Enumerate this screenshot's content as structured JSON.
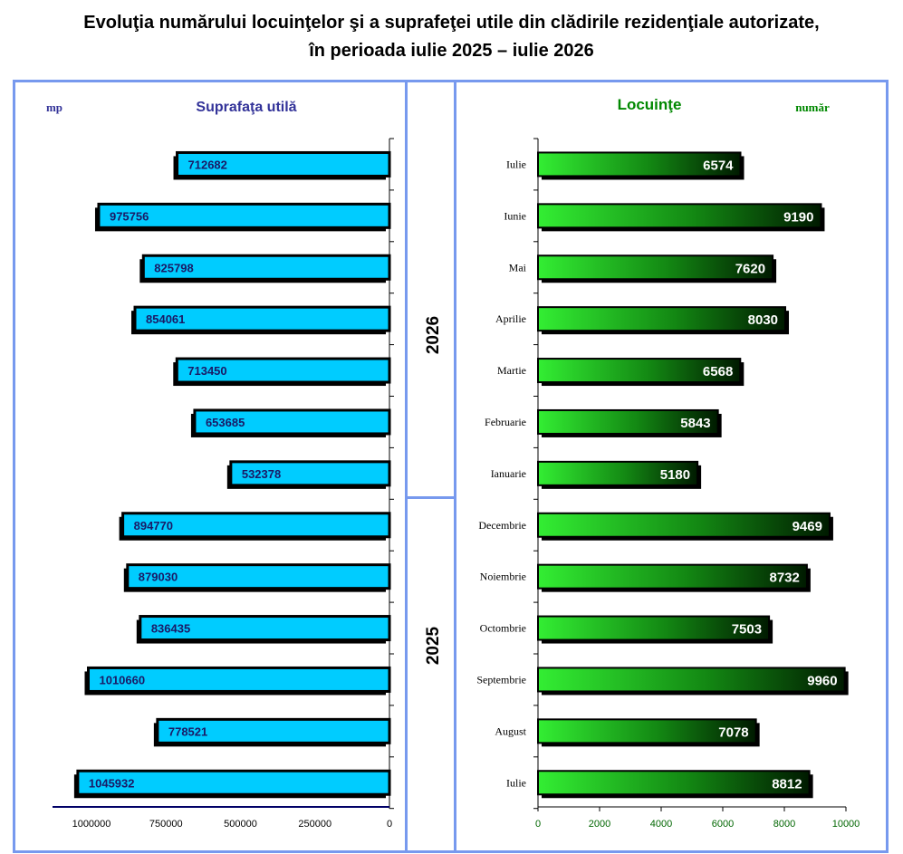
{
  "title": {
    "line1": "Evoluţia numărului locuinţelor şi a suprafeţei utile din clădirile rezidenţiale autorizate,",
    "line2": "în perioada iulie 2025 – iulie 2026"
  },
  "chart_data": [
    {
      "type": "bar",
      "orientation": "horizontal",
      "x_direction": "reversed",
      "title": "Suprafaţa utilă",
      "unit_label": "mp",
      "categories": [
        "Iulie",
        "Iunie",
        "Mai",
        "Aprilie",
        "Martie",
        "Februarie",
        "Ianuarie",
        "Decembrie",
        "Noiembrie",
        "Octombrie",
        "Septembrie",
        "August",
        "Iulie"
      ],
      "values": [
        712682,
        975756,
        825798,
        854061,
        713450,
        653685,
        532378,
        894770,
        879030,
        836435,
        1010660,
        778521,
        1045932
      ],
      "xlim": [
        0,
        1100000
      ],
      "x_ticks": [
        "1000000",
        "750000",
        "500000",
        "250000",
        "0"
      ],
      "color": "#00ccff",
      "grid": false
    },
    {
      "type": "bar",
      "orientation": "horizontal",
      "title": "Locuinţe",
      "unit_label": "număr",
      "categories": [
        "Iulie",
        "Iunie",
        "Mai",
        "Aprilie",
        "Martie",
        "Februarie",
        "Ianuarie",
        "Decembrie",
        "Noiembrie",
        "Octombrie",
        "Septembrie",
        "August",
        "Iulie"
      ],
      "values": [
        6574,
        9190,
        7620,
        8030,
        6568,
        5843,
        5180,
        9469,
        8732,
        7503,
        9960,
        7078,
        8812
      ],
      "xlim": [
        0,
        10000
      ],
      "x_ticks": [
        "0",
        "2000",
        "4000",
        "6000",
        "8000",
        "10000"
      ],
      "color": "#33ee33",
      "grid": false
    }
  ],
  "year_groups": [
    {
      "label": "2026",
      "months": 7
    },
    {
      "label": "2025",
      "months": 6
    }
  ],
  "colors": {
    "frame": "#7799ee",
    "left_title": "#333399",
    "right_title": "#008800",
    "left_bar": "#00ccff",
    "right_bar_light": "#33ee33",
    "right_bar_dark": "#001a00",
    "left_axis": "#000066",
    "right_tick_labels": "#006600"
  }
}
